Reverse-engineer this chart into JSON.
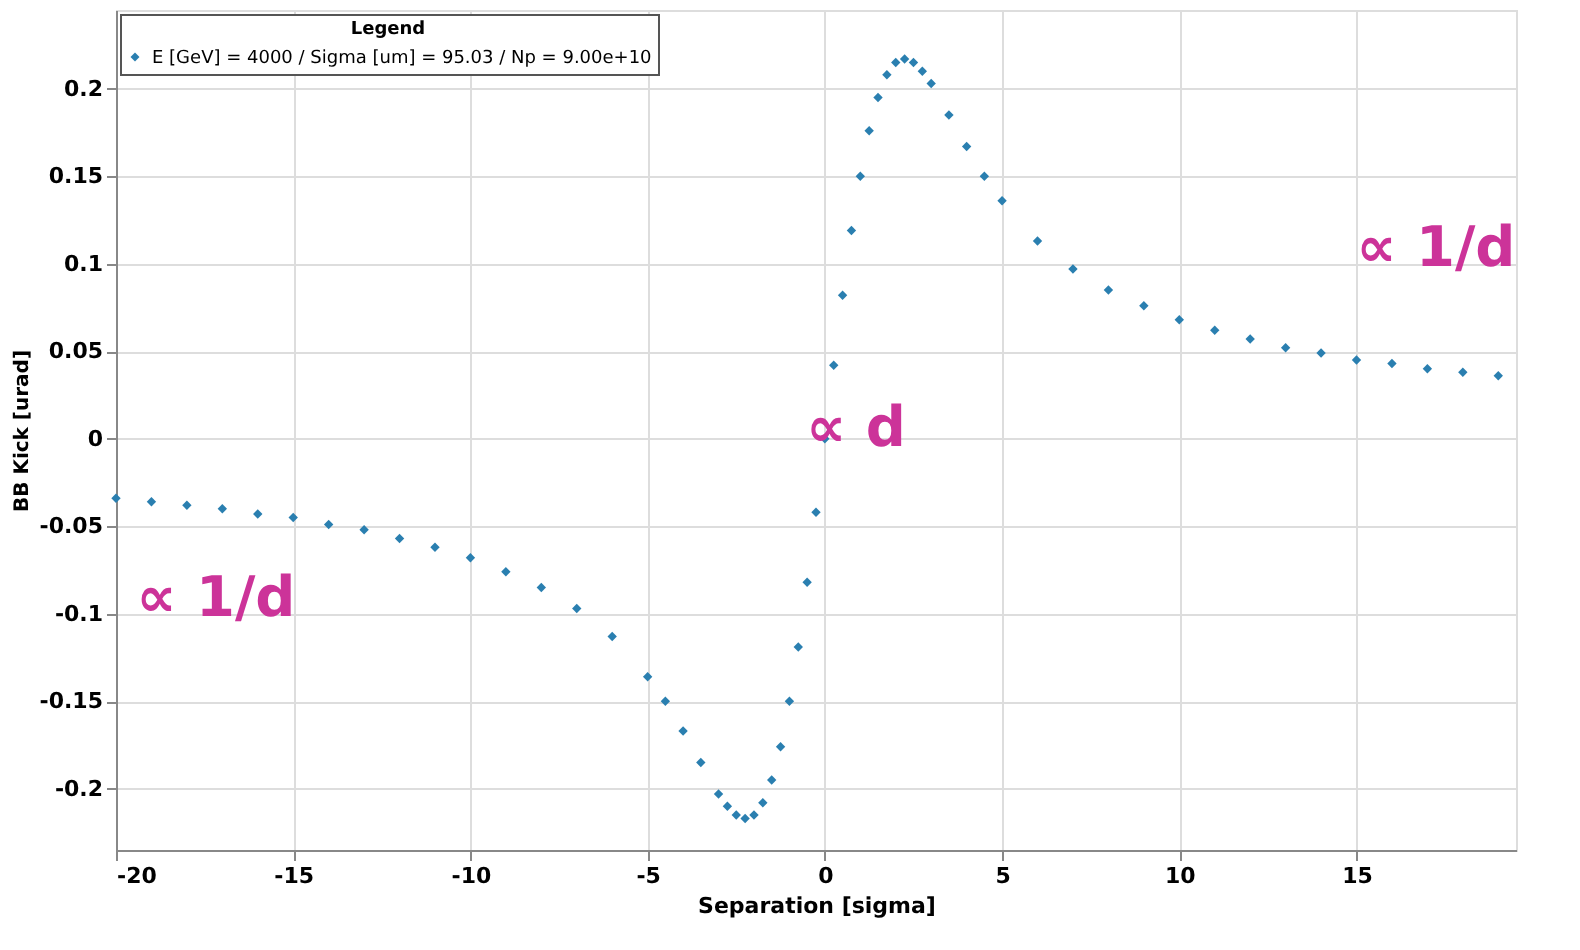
{
  "chart_data": {
    "type": "scatter",
    "xlabel": "Separation [sigma]",
    "ylabel": "BB Kick [urad]",
    "legend_title": "Legend",
    "legend": "top left",
    "marker": "diamond",
    "grid": true,
    "xlim": [
      -20,
      19.5
    ],
    "ylim": [
      -0.235,
      0.245
    ],
    "xticks": [
      -20,
      -15,
      -10,
      -5,
      0,
      5,
      10,
      15
    ],
    "yticks": [
      -0.2,
      -0.15,
      -0.1,
      -0.05,
      0,
      0.05,
      0.1,
      0.15,
      0.2
    ],
    "annotations": [
      "∝ 1/d",
      "∝ d",
      "∝ 1/d"
    ],
    "series": [
      {
        "name": "E [GeV] = 4000 / Sigma [um] = 95.03 / Np = 9.00e+10",
        "color": "#2a7fb0",
        "x": [
          -20,
          -19,
          -18,
          -17,
          -16,
          -15,
          -14,
          -13,
          -12,
          -11,
          -10,
          -9,
          -8,
          -7,
          -6,
          -5,
          -4.5,
          -4,
          -3.5,
          -3,
          -2.75,
          -2.5,
          -2.25,
          -2,
          -1.75,
          -1.5,
          -1.25,
          -1,
          -0.75,
          -0.5,
          -0.25,
          0,
          0.25,
          0.5,
          0.75,
          1,
          1.25,
          1.5,
          1.75,
          2,
          2.25,
          2.5,
          2.75,
          3,
          3.5,
          4,
          4.5,
          5,
          6,
          7,
          8,
          9,
          10,
          11,
          12,
          13,
          14,
          15,
          16,
          17,
          18,
          19
        ],
        "values": [
          -0.034,
          -0.036,
          -0.038,
          -0.04,
          -0.043,
          -0.045,
          -0.049,
          -0.052,
          -0.057,
          -0.062,
          -0.068,
          -0.076,
          -0.085,
          -0.097,
          -0.113,
          -0.136,
          -0.15,
          -0.167,
          -0.185,
          -0.203,
          -0.21,
          -0.215,
          -0.217,
          -0.215,
          -0.208,
          -0.195,
          -0.176,
          -0.15,
          -0.119,
          -0.082,
          -0.042,
          0,
          0.042,
          0.082,
          0.119,
          0.15,
          0.176,
          0.195,
          0.208,
          0.215,
          0.217,
          0.215,
          0.21,
          0.203,
          0.185,
          0.167,
          0.15,
          0.136,
          0.113,
          0.097,
          0.085,
          0.076,
          0.068,
          0.062,
          0.057,
          0.052,
          0.049,
          0.045,
          0.043,
          0.04,
          0.038,
          0.036
        ]
      }
    ]
  }
}
